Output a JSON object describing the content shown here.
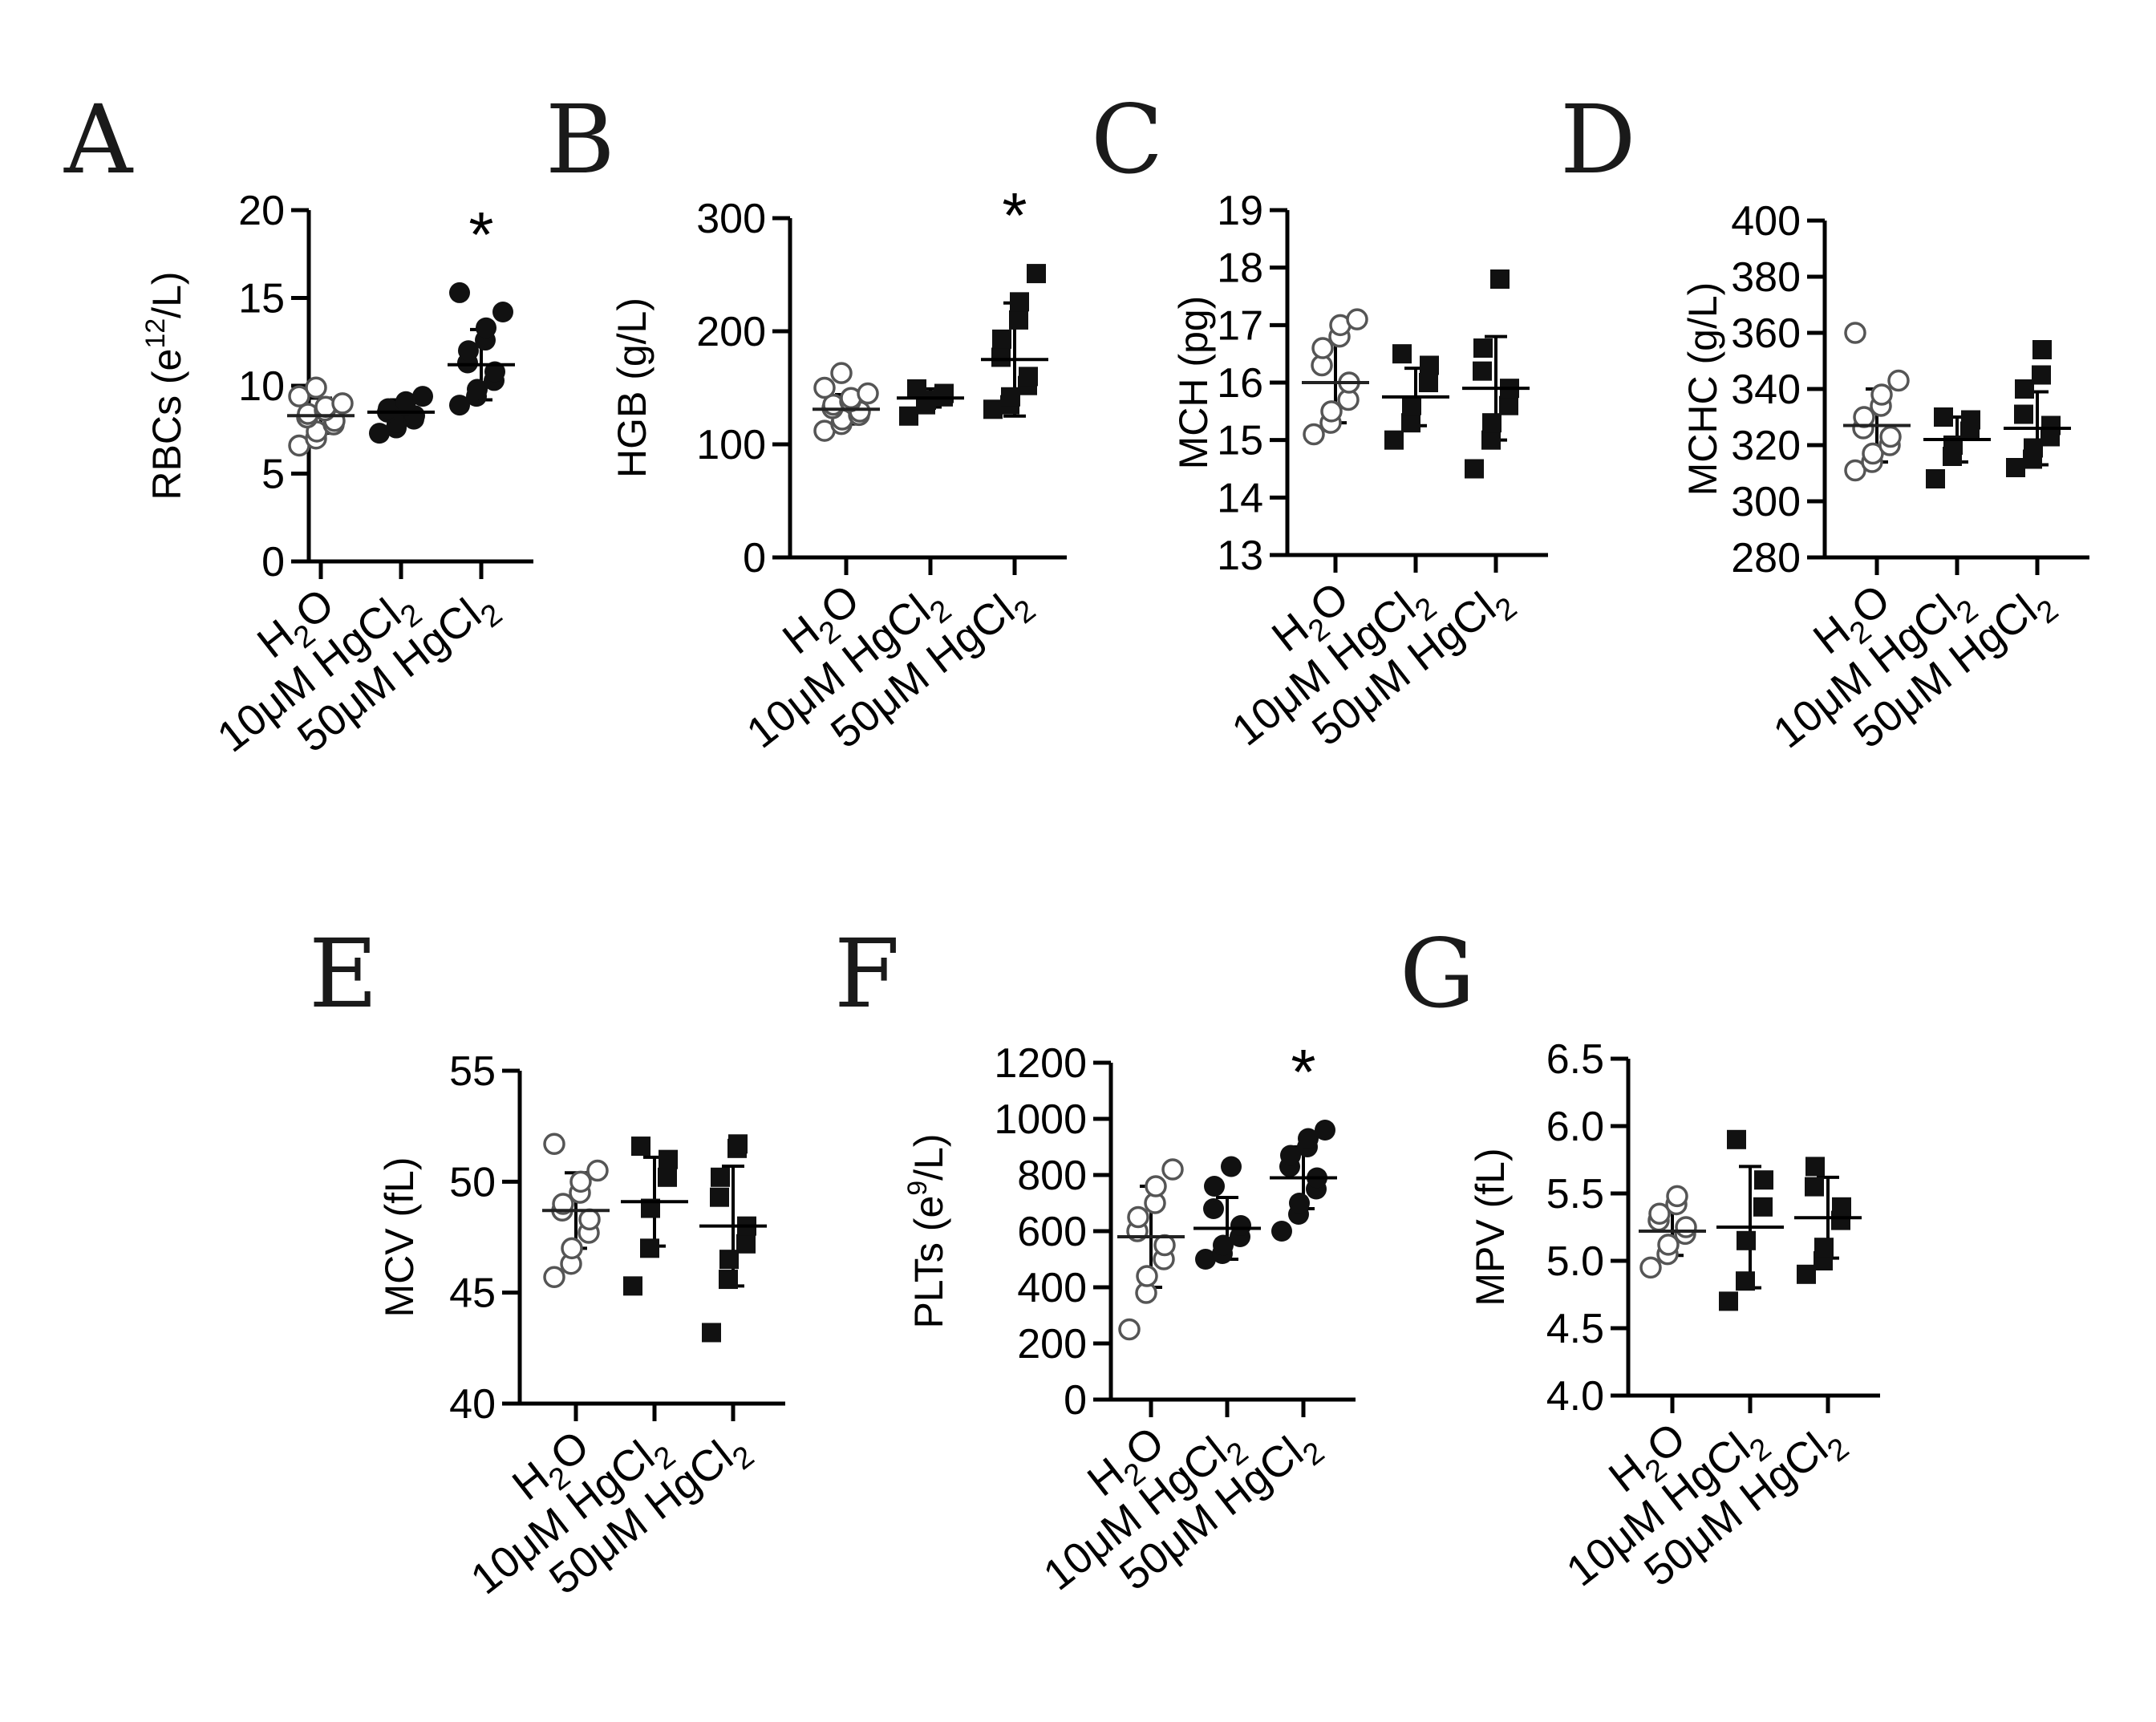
{
  "chart_data": [
    {
      "panel": "A",
      "type": "scatter",
      "ylabel": "RBCs (e12/L)",
      "ylabel_main": "RBCs (e",
      "ylabel_sup": "12",
      "ylabel_tail": "/L)",
      "ylim": [
        0,
        20
      ],
      "yticks": [
        0,
        5,
        10,
        15,
        20
      ],
      "categories": [
        "H2O",
        "10μM HgCl2",
        "50μM HgCl2"
      ],
      "groups": [
        {
          "name": "H2O",
          "marker": "circle-open",
          "mean": 8.3,
          "sd": 1.0,
          "values": [
            6.6,
            7.0,
            7.4,
            7.8,
            8.0,
            8.2,
            8.4,
            8.6,
            8.8,
            9.0,
            9.4,
            9.9
          ]
        },
        {
          "name": "10μM HgCl2",
          "marker": "circle-filled",
          "mean": 8.5,
          "sd": 0.7,
          "values": [
            7.3,
            7.6,
            7.9,
            8.1,
            8.3,
            8.5,
            8.7,
            8.9,
            9.1,
            9.4
          ]
        },
        {
          "name": "50μM HgCl2",
          "marker": "circle-filled",
          "mean": 11.2,
          "sd": 2.0,
          "values": [
            8.9,
            9.4,
            9.8,
            10.3,
            10.8,
            11.3,
            12.0,
            12.6,
            13.3,
            14.2,
            15.3
          ]
        }
      ],
      "significance": [
        {
          "group": "50μM HgCl2",
          "label": "*"
        }
      ]
    },
    {
      "panel": "B",
      "type": "scatter",
      "ylabel": "HGB (g/L)",
      "ylabel_main": "HGB (g/L)",
      "ylabel_sup": "",
      "ylabel_tail": "",
      "ylim": [
        0,
        300
      ],
      "yticks": [
        0,
        100,
        200,
        300
      ],
      "categories": [
        "H2O",
        "10μM HgCl2",
        "50μM HgCl2"
      ],
      "groups": [
        {
          "name": "H2O",
          "marker": "circle-open",
          "mean": 131,
          "sd": 13,
          "values": [
            112,
            118,
            122,
            126,
            129,
            132,
            135,
            138,
            141,
            145,
            150,
            163
          ]
        },
        {
          "name": "10μM HgCl2",
          "marker": "square-filled",
          "mean": 141,
          "sd": 8,
          "values": [
            125,
            135,
            139,
            142,
            145,
            149
          ]
        },
        {
          "name": "50μM HgCl2",
          "marker": "square-filled",
          "mean": 175,
          "sd": 50,
          "values": [
            131,
            135,
            142,
            152,
            160,
            177,
            193,
            210,
            226,
            251
          ]
        }
      ],
      "significance": [
        {
          "group": "50μM HgCl2",
          "label": "*"
        }
      ]
    },
    {
      "panel": "C",
      "type": "scatter",
      "ylabel": "MCH (pg)",
      "ylabel_main": "MCH (pg)",
      "ylabel_sup": "",
      "ylabel_tail": "",
      "ylim": [
        13,
        19
      ],
      "yticks": [
        13,
        14,
        15,
        16,
        17,
        18,
        19
      ],
      "categories": [
        "H2O",
        "10μM HgCl2",
        "50μM HgCl2"
      ],
      "groups": [
        {
          "name": "H2O",
          "marker": "circle-open",
          "mean": 16.0,
          "sd": 0.7,
          "values": [
            15.1,
            15.3,
            15.5,
            15.7,
            16.0,
            16.3,
            16.6,
            16.8,
            17.0,
            17.1
          ]
        },
        {
          "name": "10μM HgCl2",
          "marker": "square-filled",
          "mean": 15.75,
          "sd": 0.5,
          "values": [
            15.0,
            15.3,
            15.6,
            16.0,
            16.3,
            16.5
          ]
        },
        {
          "name": "50μM HgCl2",
          "marker": "square-filled",
          "mean": 15.9,
          "sd": 0.9,
          "values": [
            14.5,
            15.0,
            15.3,
            15.6,
            15.9,
            16.2,
            16.6,
            17.8
          ]
        }
      ],
      "significance": []
    },
    {
      "panel": "D",
      "type": "scatter",
      "ylabel": "MCHC (g/L)",
      "ylabel_main": "MCHC (g/L)",
      "ylabel_sup": "",
      "ylabel_tail": "",
      "ylim": [
        280,
        400
      ],
      "yticks": [
        280,
        300,
        320,
        340,
        360,
        380,
        400
      ],
      "categories": [
        "H2O",
        "10μM HgCl2",
        "50μM HgCl2"
      ],
      "groups": [
        {
          "name": "H2O",
          "marker": "circle-open",
          "mean": 327,
          "sd": 13,
          "values": [
            311,
            314,
            317,
            320,
            323,
            326,
            330,
            334,
            338,
            343,
            360
          ]
        },
        {
          "name": "10μM HgCl2",
          "marker": "square-filled",
          "mean": 322,
          "sd": 8,
          "values": [
            308,
            316,
            320,
            325,
            329,
            330
          ]
        },
        {
          "name": "50μM HgCl2",
          "marker": "square-filled",
          "mean": 326,
          "sd": 13,
          "values": [
            312,
            315,
            319,
            323,
            327,
            331,
            340,
            345,
            354
          ]
        }
      ],
      "significance": []
    },
    {
      "panel": "E",
      "type": "scatter",
      "ylabel": "MCV (fL)",
      "ylabel_main": "MCV (fL)",
      "ylabel_sup": "",
      "ylabel_tail": "",
      "ylim": [
        40,
        55
      ],
      "yticks": [
        40,
        45,
        50,
        55
      ],
      "categories": [
        "H2O",
        "10μM HgCl2",
        "50μM HgCl2"
      ],
      "groups": [
        {
          "name": "H2O",
          "marker": "circle-open",
          "mean": 48.7,
          "sd": 1.7,
          "values": [
            45.7,
            46.3,
            47.0,
            47.7,
            48.3,
            48.7,
            49.0,
            49.5,
            50.0,
            50.5,
            51.7
          ]
        },
        {
          "name": "10μM HgCl2",
          "marker": "square-filled",
          "mean": 49.1,
          "sd": 2.0,
          "values": [
            45.3,
            47.0,
            48.8,
            50.2,
            51.0,
            51.6
          ]
        },
        {
          "name": "50μM HgCl2",
          "marker": "square-filled",
          "mean": 48.0,
          "sd": 2.7,
          "values": [
            43.2,
            45.6,
            46.5,
            47.2,
            48.0,
            49.3,
            50.2,
            51.5,
            51.7
          ]
        }
      ],
      "significance": []
    },
    {
      "panel": "F",
      "type": "scatter",
      "ylabel": "PLTs (e9/L)",
      "ylabel_main": "PLTs (e",
      "ylabel_sup": "9",
      "ylabel_tail": "/L)",
      "ylim": [
        0,
        1200
      ],
      "yticks": [
        0,
        200,
        400,
        600,
        800,
        1000,
        1200
      ],
      "categories": [
        "H2O",
        "10μM HgCl2",
        "50μM HgCl2"
      ],
      "groups": [
        {
          "name": "H2O",
          "marker": "circle-open",
          "mean": 580,
          "sd": 180,
          "values": [
            250,
            380,
            440,
            500,
            550,
            600,
            650,
            700,
            760,
            820
          ]
        },
        {
          "name": "10μM HgCl2",
          "marker": "circle-filled",
          "mean": 610,
          "sd": 110,
          "values": [
            500,
            520,
            550,
            580,
            620,
            680,
            760,
            830
          ]
        },
        {
          "name": "50μM HgCl2",
          "marker": "circle-filled",
          "mean": 790,
          "sd": 110,
          "values": [
            600,
            660,
            700,
            750,
            790,
            830,
            870,
            900,
            930,
            960
          ]
        }
      ],
      "significance": [
        {
          "group": "50μM HgCl2",
          "label": "*"
        }
      ]
    },
    {
      "panel": "G",
      "type": "scatter",
      "ylabel": "MPV (fL)",
      "ylabel_main": "MPV (fL)",
      "ylabel_sup": "",
      "ylabel_tail": "",
      "ylim": [
        4.0,
        6.5
      ],
      "yticks": [
        "4.0",
        "4.5",
        "5.0",
        "5.5",
        "6.0",
        "6.5"
      ],
      "categories": [
        "H2O",
        "10μM HgCl2",
        "50μM HgCl2"
      ],
      "groups": [
        {
          "name": "H2O",
          "marker": "circle-open",
          "mean": 5.22,
          "sd": 0.18,
          "values": [
            4.95,
            5.05,
            5.12,
            5.2,
            5.25,
            5.3,
            5.35,
            5.42,
            5.48
          ]
        },
        {
          "name": "10μM HgCl2",
          "marker": "square-filled",
          "mean": 5.25,
          "sd": 0.45,
          "values": [
            4.7,
            4.85,
            5.15,
            5.4,
            5.6,
            5.9
          ]
        },
        {
          "name": "50μM HgCl2",
          "marker": "square-filled",
          "mean": 5.32,
          "sd": 0.3,
          "values": [
            4.9,
            5.0,
            5.1,
            5.3,
            5.4,
            5.55,
            5.7
          ]
        }
      ],
      "significance": []
    }
  ]
}
